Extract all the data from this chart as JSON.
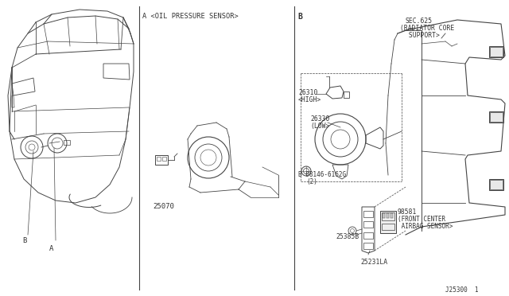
{
  "bg_color": "#ffffff",
  "line_color": "#444444",
  "text_color": "#333333",
  "diagram_id": "J25300  1",
  "section_A_label": "A <OIL PRESSURE SENSOR>",
  "section_B_label": "B",
  "sec625_line1": "SEC.625",
  "sec625_line2": "(RADIATOR CORE",
  "sec625_line3": " SUPPORT>",
  "label_26310": "26310",
  "label_26310b": "<HIGH>",
  "label_26330": "26330",
  "label_26330b": "(LOW>",
  "label_08146": "B 08146-6162G",
  "label_08146b": "(2)",
  "label_98581": "98581",
  "label_98581b": "(FRONT CENTER",
  "label_98581c": " AIRBAG SENSOR>",
  "label_25385B": "25385B",
  "label_25231LA": "25231LA",
  "label_25070": "25070",
  "label_A": "A",
  "label_B": "B",
  "figsize": [
    6.4,
    3.72
  ],
  "dpi": 100
}
